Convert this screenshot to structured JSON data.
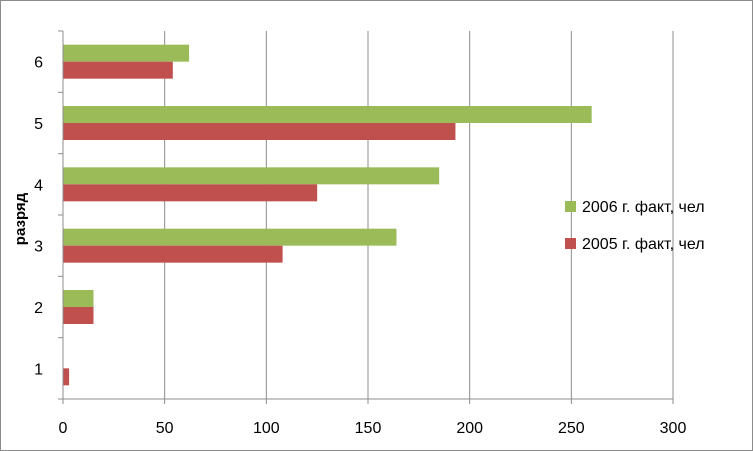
{
  "chart_data": {
    "type": "bar",
    "orientation": "horizontal",
    "categories": [
      "1",
      "2",
      "3",
      "4",
      "5",
      "6"
    ],
    "series": [
      {
        "name": "2006 г. факт, чел",
        "color": "#9bbb59",
        "values": [
          0,
          15,
          164,
          185,
          260,
          62
        ]
      },
      {
        "name": "2005 г. факт, чел",
        "color": "#c0504d",
        "values": [
          3,
          15,
          108,
          125,
          193,
          54
        ]
      }
    ],
    "xlim": [
      0,
      300
    ],
    "xticks": [
      0,
      50,
      100,
      150,
      200,
      250,
      300
    ],
    "ylabel": "разряд",
    "xlabel": "",
    "title": "",
    "grid": "vertical",
    "legend_position": "right"
  }
}
